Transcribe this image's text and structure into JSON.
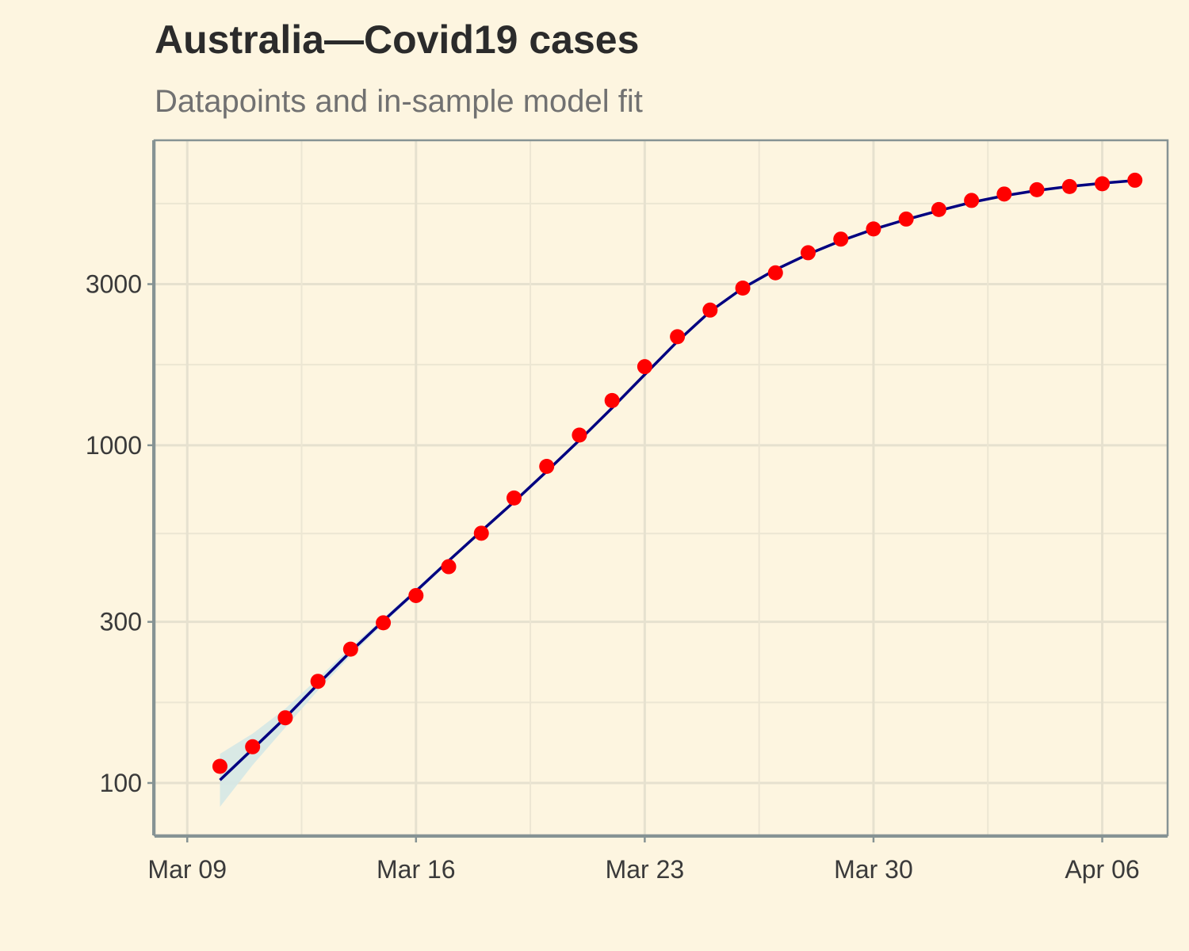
{
  "chart_data": {
    "type": "line",
    "title": "Australia—Covid19 cases",
    "subtitle": "Datapoints and in-sample model fit",
    "xlabel": "",
    "ylabel": "",
    "y_scale": "log",
    "xlim": [
      "2020-03-08",
      "2020-04-08"
    ],
    "ylim": [
      70,
      8000
    ],
    "x_tick_dates": [
      "2020-03-09",
      "2020-03-16",
      "2020-03-23",
      "2020-03-30",
      "2020-04-06"
    ],
    "x_tick_labels": [
      "Mar 09",
      "Mar 16",
      "Mar 23",
      "Mar 30",
      "Apr 06"
    ],
    "y_ticks": [
      100,
      300,
      1000,
      3000
    ],
    "y_tick_labels": [
      "100",
      "300",
      "1000",
      "3000"
    ],
    "grid": true,
    "legend": "none",
    "colors": {
      "background": "#fdf5e0",
      "points": "#ff0000",
      "fit_line": "#000080",
      "band": "#d5e8e6",
      "axis": "#869394"
    },
    "x": [
      "2020-03-10",
      "2020-03-11",
      "2020-03-12",
      "2020-03-13",
      "2020-03-14",
      "2020-03-15",
      "2020-03-16",
      "2020-03-17",
      "2020-03-18",
      "2020-03-19",
      "2020-03-20",
      "2020-03-21",
      "2020-03-22",
      "2020-03-23",
      "2020-03-24",
      "2020-03-25",
      "2020-03-26",
      "2020-03-27",
      "2020-03-28",
      "2020-03-29",
      "2020-03-30",
      "2020-03-31",
      "2020-04-01",
      "2020-04-02",
      "2020-04-03",
      "2020-04-04",
      "2020-04-05",
      "2020-04-06",
      "2020-04-07"
    ],
    "series": [
      {
        "kind": "points",
        "values": [
          112,
          128,
          156,
          200,
          249,
          298,
          359,
          437,
          549,
          698,
          866,
          1072,
          1357,
          1709,
          2096,
          2513,
          2920,
          3240,
          3716,
          4078,
          4371,
          4675,
          4990,
          5308,
          5545,
          5710,
          5835,
          5947,
          6092
        ]
      },
      {
        "kind": "fit",
        "values": [
          102,
          126,
          156,
          196,
          245,
          302,
          370,
          455,
          557,
          680,
          837,
          1035,
          1290,
          1620,
          2030,
          2490,
          2920,
          3310,
          3680,
          4030,
          4360,
          4660,
          4950,
          5240,
          5480,
          5680,
          5840,
          5970,
          6080
        ]
      },
      {
        "kind": "interval",
        "lower": [
          85,
          113,
          146,
          188,
          238,
          296,
          364,
          449,
          551,
          674,
          830,
          1027,
          1280,
          1610,
          2018,
          2477,
          2906,
          3296,
          3664,
          4014,
          4342,
          4642,
          4931,
          5221,
          5460,
          5660,
          5820,
          5950,
          6058
        ],
        "upper": [
          122,
          140,
          166,
          204,
          252,
          308,
          376,
          461,
          563,
          686,
          844,
          1043,
          1300,
          1630,
          2042,
          2503,
          2934,
          3324,
          3696,
          4046,
          4378,
          4678,
          4969,
          5259,
          5500,
          5700,
          5860,
          5990,
          6102
        ]
      }
    ]
  }
}
